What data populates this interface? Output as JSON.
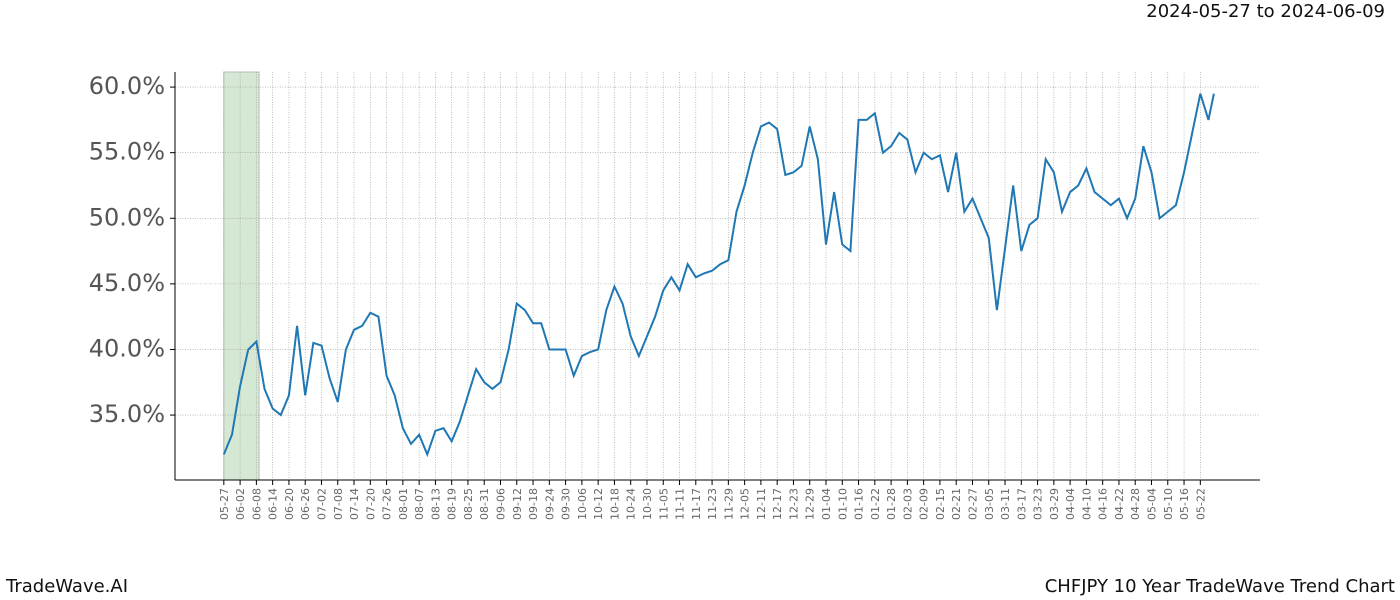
{
  "header": {
    "date_range": "2024-05-27 to 2024-06-09"
  },
  "footer": {
    "brand": "TradeWave.AI",
    "caption": "CHFJPY 10 Year TradeWave Trend Chart"
  },
  "chart_data": {
    "type": "line",
    "x": [
      0,
      3,
      6,
      9,
      12,
      15,
      18,
      21,
      24,
      27,
      30,
      33,
      36,
      39,
      42,
      45,
      48,
      51,
      54,
      57,
      60,
      63,
      66,
      69,
      72,
      75,
      78,
      81,
      84,
      87,
      90,
      93,
      96,
      99,
      102,
      105,
      108,
      111,
      114,
      117,
      120,
      123,
      126,
      129,
      132,
      135,
      138,
      141,
      144,
      147,
      150,
      153,
      156,
      159,
      162,
      165,
      168,
      171,
      174,
      177,
      180,
      183,
      186,
      189,
      192,
      195,
      198,
      201,
      204,
      207,
      210,
      213,
      216,
      219,
      222,
      225,
      228,
      231,
      234,
      237,
      240,
      243,
      246,
      249,
      252,
      255,
      258,
      261,
      264,
      267,
      270,
      273,
      276,
      279,
      282,
      285,
      288,
      291,
      294,
      297,
      300,
      303,
      306,
      309,
      312,
      315,
      318,
      321,
      324,
      327,
      330,
      333,
      336,
      339,
      342,
      345,
      348,
      351,
      354,
      357,
      360,
      363,
      365
    ],
    "series": [
      {
        "color": "#1f77b4",
        "values": [
          32.0,
          33.5,
          37.2,
          40.0,
          40.6,
          37.0,
          35.5,
          35.0,
          36.5,
          41.8,
          36.5,
          40.5,
          40.3,
          37.8,
          36.0,
          40.0,
          41.5,
          41.8,
          42.8,
          42.5,
          38.0,
          36.5,
          34.0,
          32.8,
          33.5,
          32.0,
          33.8,
          34.0,
          33.0,
          34.5,
          36.5,
          38.5,
          37.5,
          37.0,
          37.5,
          40.0,
          43.5,
          43.0,
          42.0,
          42.0,
          40.0,
          40.0,
          40.0,
          38.0,
          39.5,
          39.8,
          40.0,
          43.0,
          44.8,
          43.5,
          41.0,
          39.5,
          41.0,
          42.5,
          44.5,
          45.5,
          44.5,
          46.5,
          45.5,
          45.8,
          46.0,
          46.5,
          46.8,
          50.5,
          52.5,
          55.0,
          57.0,
          57.3,
          56.8,
          53.3,
          53.5,
          54.0,
          57.0,
          54.5,
          48.0,
          52.0,
          48.0,
          47.5,
          57.5,
          57.5,
          58.0,
          55.0,
          55.5,
          56.5,
          56.0,
          53.5,
          55.0,
          54.5,
          54.8,
          52.0,
          55.0,
          50.5,
          51.5,
          50.0,
          48.5,
          43.0,
          47.7,
          52.5,
          47.5,
          49.5,
          50.0,
          54.5,
          53.5,
          50.5,
          52.0,
          52.5,
          53.8,
          52.0,
          51.5,
          51.0,
          51.5,
          50.0,
          51.5,
          55.5,
          53.5,
          50.0,
          50.5,
          51.0,
          53.5,
          56.5,
          59.5,
          57.5,
          59.5
        ]
      }
    ],
    "highlight": [
      0,
      13
    ],
    "highlight_color": "#d5e8d4",
    "xlim": [
      -18,
      382
    ],
    "ylim": [
      30.05,
      61.15
    ],
    "xticks": [
      {
        "value": 0,
        "label": "05-27"
      },
      {
        "value": 6,
        "label": "06-02"
      },
      {
        "value": 12,
        "label": "06-08"
      },
      {
        "value": 18,
        "label": "06-14"
      },
      {
        "value": 24,
        "label": "06-20"
      },
      {
        "value": 30,
        "label": "06-26"
      },
      {
        "value": 36,
        "label": "07-02"
      },
      {
        "value": 42,
        "label": "07-08"
      },
      {
        "value": 48,
        "label": "07-14"
      },
      {
        "value": 54,
        "label": "07-20"
      },
      {
        "value": 60,
        "label": "07-26"
      },
      {
        "value": 66,
        "label": "08-01"
      },
      {
        "value": 72,
        "label": "08-07"
      },
      {
        "value": 78,
        "label": "08-13"
      },
      {
        "value": 84,
        "label": "08-19"
      },
      {
        "value": 90,
        "label": "08-25"
      },
      {
        "value": 96,
        "label": "08-31"
      },
      {
        "value": 102,
        "label": "09-06"
      },
      {
        "value": 108,
        "label": "09-12"
      },
      {
        "value": 114,
        "label": "09-18"
      },
      {
        "value": 120,
        "label": "09-24"
      },
      {
        "value": 126,
        "label": "09-30"
      },
      {
        "value": 132,
        "label": "10-06"
      },
      {
        "value": 138,
        "label": "10-12"
      },
      {
        "value": 144,
        "label": "10-18"
      },
      {
        "value": 150,
        "label": "10-24"
      },
      {
        "value": 156,
        "label": "10-30"
      },
      {
        "value": 162,
        "label": "11-05"
      },
      {
        "value": 168,
        "label": "11-11"
      },
      {
        "value": 174,
        "label": "11-17"
      },
      {
        "value": 180,
        "label": "11-23"
      },
      {
        "value": 186,
        "label": "11-29"
      },
      {
        "value": 192,
        "label": "12-05"
      },
      {
        "value": 198,
        "label": "12-11"
      },
      {
        "value": 204,
        "label": "12-17"
      },
      {
        "value": 210,
        "label": "12-23"
      },
      {
        "value": 216,
        "label": "12-29"
      },
      {
        "value": 222,
        "label": "01-04"
      },
      {
        "value": 228,
        "label": "01-10"
      },
      {
        "value": 234,
        "label": "01-16"
      },
      {
        "value": 240,
        "label": "01-22"
      },
      {
        "value": 246,
        "label": "01-28"
      },
      {
        "value": 252,
        "label": "02-03"
      },
      {
        "value": 258,
        "label": "02-09"
      },
      {
        "value": 264,
        "label": "02-15"
      },
      {
        "value": 270,
        "label": "02-21"
      },
      {
        "value": 276,
        "label": "02-27"
      },
      {
        "value": 282,
        "label": "03-05"
      },
      {
        "value": 288,
        "label": "03-11"
      },
      {
        "value": 294,
        "label": "03-17"
      },
      {
        "value": 300,
        "label": "03-23"
      },
      {
        "value": 306,
        "label": "03-29"
      },
      {
        "value": 312,
        "label": "04-04"
      },
      {
        "value": 318,
        "label": "04-10"
      },
      {
        "value": 324,
        "label": "04-16"
      },
      {
        "value": 330,
        "label": "04-22"
      },
      {
        "value": 336,
        "label": "04-28"
      },
      {
        "value": 342,
        "label": "05-04"
      },
      {
        "value": 348,
        "label": "05-10"
      },
      {
        "value": 354,
        "label": "05-16"
      },
      {
        "value": 360,
        "label": "05-22"
      }
    ],
    "yticks": [
      {
        "value": 35,
        "label": "35.0%"
      },
      {
        "value": 40,
        "label": "40.0%"
      },
      {
        "value": 45,
        "label": "45.0%"
      },
      {
        "value": 50,
        "label": "50.0%"
      },
      {
        "value": 55,
        "label": "55.0%"
      },
      {
        "value": 60,
        "label": "60.0%"
      }
    ],
    "grid": true
  }
}
